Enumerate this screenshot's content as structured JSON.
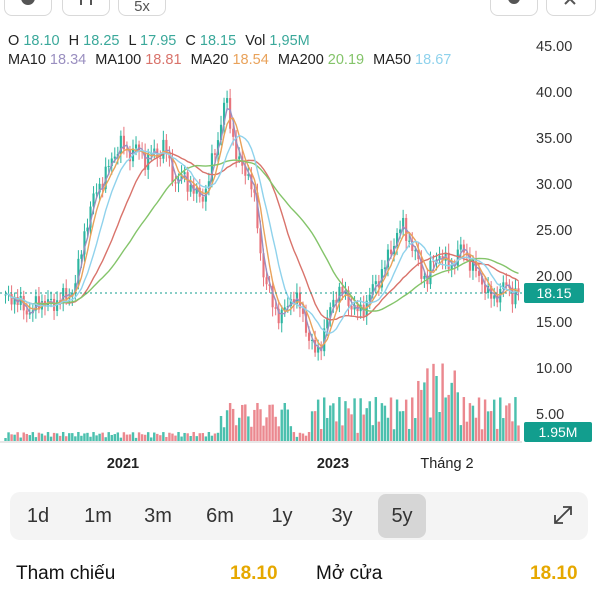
{
  "top_buttons": [
    {
      "icon": "candlestick-icon"
    },
    {
      "icon": "indicator-icon"
    },
    {
      "label": "5x"
    },
    {
      "icon": "settings-icon"
    },
    {
      "icon": "close-icon"
    }
  ],
  "ohlc": {
    "o_label": "O",
    "o": "18.10",
    "h_label": "H",
    "h": "18.25",
    "l_label": "L",
    "l": "17.95",
    "c_label": "C",
    "c": "18.15",
    "vol_label": "Vol",
    "vol": "1,95M"
  },
  "ma": [
    {
      "label": "MA10",
      "value": "18.34",
      "color": "#9a8fc0"
    },
    {
      "label": "MA100",
      "value": "18.81",
      "color": "#d9736b"
    },
    {
      "label": "MA20",
      "value": "18.54",
      "color": "#e9a25a"
    },
    {
      "label": "MA200",
      "value": "20.19",
      "color": "#84c46a"
    },
    {
      "label": "MA50",
      "value": "18.67",
      "color": "#8fd2ec"
    }
  ],
  "colors": {
    "up": "#2bb5a0",
    "down": "#e8737b",
    "accent": "#129e8e",
    "value_yellow": "#e6a800",
    "ohlc_value": "#3aa89a"
  },
  "chart_data": {
    "type": "candlestick",
    "y_ticks": [
      "45.00",
      "40.00",
      "35.00",
      "30.00",
      "25.00",
      "20.00",
      "15.00",
      "10.00",
      "5.00"
    ],
    "ylim": [
      5,
      45
    ],
    "x_labels": [
      "2021",
      "2023",
      "Tháng 2"
    ],
    "last_price": "18.15",
    "last_volume": "1.95M",
    "close_series": [
      17.5,
      17.8,
      17.2,
      16.5,
      16.0,
      16.8,
      17.3,
      17.0,
      16.8,
      17.9,
      17.5,
      18.5,
      21.0,
      25.0,
      27.5,
      29.5,
      30.5,
      32.0,
      33.5,
      34.5,
      33.0,
      34.0,
      33.5,
      32.5,
      33.5,
      33.0,
      34.5,
      31.5,
      30.0,
      31.0,
      30.0,
      29.0,
      28.5,
      29.5,
      33.0,
      35.5,
      39.5,
      36.0,
      32.5,
      31.5,
      31.0,
      27.0,
      21.0,
      18.5,
      16.5,
      15.5,
      16.5,
      18.0,
      17.0,
      15.0,
      12.5,
      11.5,
      13.5,
      16.0,
      18.0,
      18.3,
      17.5,
      16.5,
      16.0,
      17.0,
      18.5,
      19.5,
      21.0,
      22.5,
      24.5,
      25.5,
      24.0,
      22.5,
      20.5,
      19.5,
      21.5,
      22.5,
      21.5,
      21.0,
      22.5,
      23.0,
      21.5,
      20.5,
      19.5,
      18.0,
      17.5,
      18.5,
      19.0,
      18.0,
      18.15
    ]
  },
  "periods": [
    "1d",
    "1m",
    "3m",
    "6m",
    "1y",
    "3y",
    "5y"
  ],
  "active_period": "5y",
  "stats": {
    "ref_label": "Tham chiếu",
    "ref_value": "18.10",
    "open_label": "Mở cửa",
    "open_value": "18.10"
  }
}
